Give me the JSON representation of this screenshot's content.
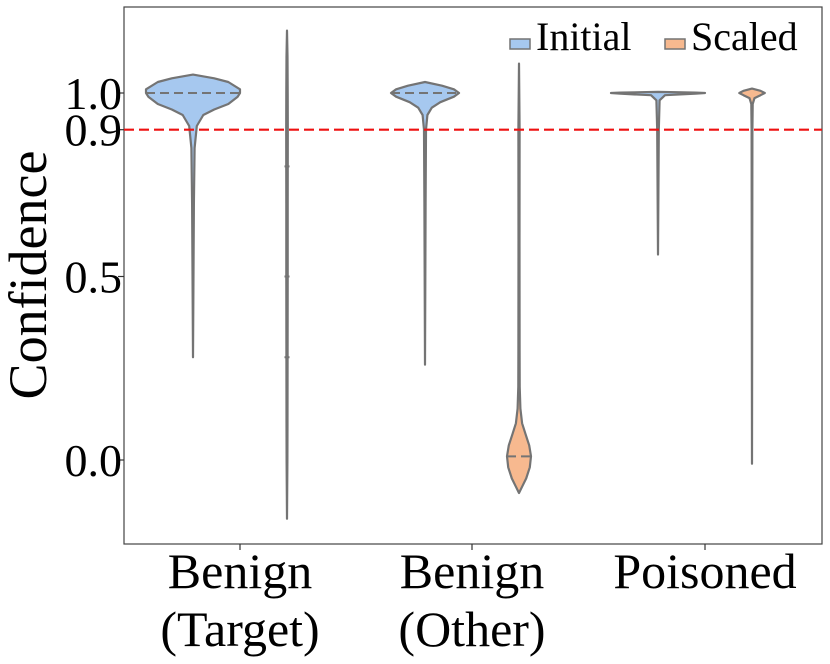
{
  "chart_data": {
    "type": "violin",
    "title": "",
    "xlabel": "",
    "ylabel": "Confidence",
    "categories": [
      {
        "line1": "Benign",
        "line2": "(Target)"
      },
      {
        "line1": "Benign",
        "line2": "(Other)"
      },
      {
        "line1": "Poisoned",
        "line2": ""
      }
    ],
    "ylim": [
      -0.22,
      1.23
    ],
    "yticks": [
      {
        "value": 0.0,
        "label": "0.0"
      },
      {
        "value": 0.5,
        "label": "0.5"
      },
      {
        "value": 0.9,
        "label": "0.9"
      },
      {
        "value": 1.0,
        "label": "1.0"
      }
    ],
    "threshold": {
      "value": 0.9,
      "color": "#ee1111",
      "style": "dashed"
    },
    "legend": {
      "position": "top-right"
    },
    "series": [
      {
        "name": "Initial",
        "color": "#a6c8ef",
        "violins": [
          {
            "min": 0.28,
            "max": 1.05,
            "inner_lines": [
              1.0
            ],
            "profile": [
              [
                1.05,
                0.0
              ],
              [
                1.04,
                0.45
              ],
              [
                1.03,
                0.75
              ],
              [
                1.01,
                1.0
              ],
              [
                1.0,
                1.0
              ],
              [
                0.99,
                0.95
              ],
              [
                0.97,
                0.75
              ],
              [
                0.955,
                0.45
              ],
              [
                0.94,
                0.22
              ],
              [
                0.91,
                0.08
              ],
              [
                0.85,
                0.035
              ],
              [
                0.7,
                0.02
              ],
              [
                0.28,
                0.0
              ]
            ]
          },
          {
            "min": 0.26,
            "max": 1.03,
            "inner_lines": [
              1.0
            ],
            "profile": [
              [
                1.03,
                0.0
              ],
              [
                1.02,
                0.5
              ],
              [
                1.01,
                0.85
              ],
              [
                1.0,
                1.0
              ],
              [
                0.99,
                0.85
              ],
              [
                0.975,
                0.45
              ],
              [
                0.96,
                0.2
              ],
              [
                0.94,
                0.07
              ],
              [
                0.9,
                0.03
              ],
              [
                0.7,
                0.018
              ],
              [
                0.26,
                0.0
              ]
            ]
          },
          {
            "min": 0.56,
            "max": 1.0,
            "inner_lines": [],
            "profile": [
              [
                1.003,
                0.0
              ],
              [
                1.001,
                0.8
              ],
              [
                1.0,
                1.0
              ],
              [
                0.998,
                0.8
              ],
              [
                0.994,
                0.15
              ],
              [
                0.98,
                0.035
              ],
              [
                0.9,
                0.018
              ],
              [
                0.56,
                0.0
              ]
            ]
          }
        ]
      },
      {
        "name": "Scaled",
        "color": "#f7b98f",
        "violins": [
          {
            "min": -0.16,
            "max": 1.17,
            "inner_lines": [
              0.8,
              0.5,
              0.28
            ],
            "profile": [
              [
                1.17,
                0.0
              ],
              [
                1.1,
                0.09
              ],
              [
                1.0,
                0.13
              ],
              [
                0.9,
                0.14
              ],
              [
                0.7,
                0.13
              ],
              [
                0.5,
                0.12
              ],
              [
                0.3,
                0.11
              ],
              [
                0.1,
                0.09
              ],
              [
                0.0,
                0.07
              ],
              [
                -0.08,
                0.045
              ],
              [
                -0.16,
                0.0
              ]
            ]
          },
          {
            "min": -0.09,
            "max": 1.08,
            "inner_lines": [
              0.01
            ],
            "profile": [
              [
                1.08,
                0.0
              ],
              [
                0.9,
                0.05
              ],
              [
                0.6,
                0.045
              ],
              [
                0.3,
                0.05
              ],
              [
                0.2,
                0.06
              ],
              [
                0.14,
                0.12
              ],
              [
                0.1,
                0.26
              ],
              [
                0.07,
                0.55
              ],
              [
                0.04,
                0.85
              ],
              [
                0.01,
                1.0
              ],
              [
                -0.02,
                0.9
              ],
              [
                -0.05,
                0.6
              ],
              [
                -0.07,
                0.3
              ],
              [
                -0.09,
                0.0
              ]
            ]
          },
          {
            "min": -0.01,
            "max": 1.01,
            "inner_lines": [],
            "profile": [
              [
                1.012,
                0.0
              ],
              [
                1.006,
                0.5
              ],
              [
                1.0,
                0.75
              ],
              [
                0.994,
                0.5
              ],
              [
                0.986,
                0.15
              ],
              [
                0.97,
                0.04
              ],
              [
                0.9,
                0.022
              ],
              [
                -0.01,
                0.0
              ]
            ]
          }
        ]
      }
    ]
  }
}
